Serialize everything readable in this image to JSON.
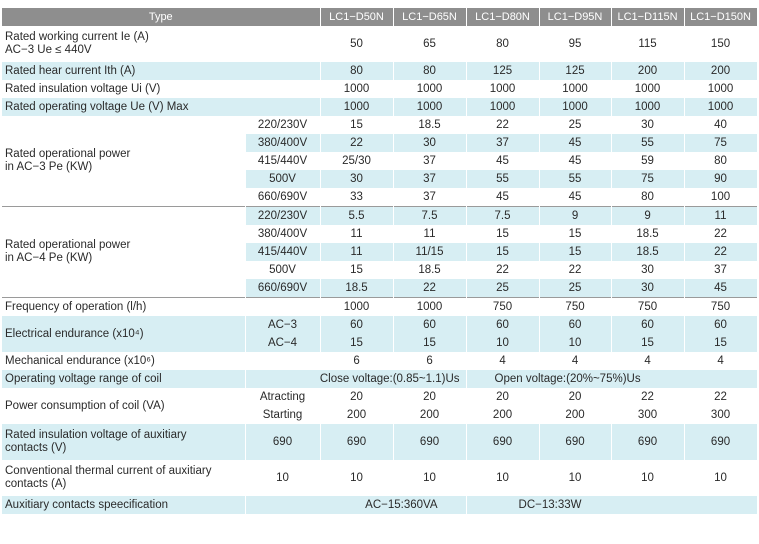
{
  "header": {
    "type_label": "Type",
    "models": [
      "LC1−D50N",
      "LC1−D65N",
      "LC1−D80N",
      "LC1−D95N",
      "LC1−D115N",
      "LC1−D150N"
    ]
  },
  "rows": {
    "rated_working_current": {
      "label_line1": "Rated working current Ie (A)",
      "label_line2": "AC−3 Ue ≤ 440V",
      "values": [
        "50",
        "65",
        "80",
        "95",
        "115",
        "150"
      ]
    },
    "rated_heat_current": {
      "label": "Rated hear current Ith (A)",
      "values": [
        "80",
        "80",
        "125",
        "125",
        "200",
        "200"
      ]
    },
    "rated_insulation_voltage": {
      "label": "Rated insulation voltage Ui (V)",
      "values": [
        "1000",
        "1000",
        "1000",
        "1000",
        "1000",
        "1000"
      ]
    },
    "rated_operating_voltage": {
      "label": "Rated operating voltage Ue (V) Max",
      "values": [
        "1000",
        "1000",
        "1000",
        "1000",
        "1000",
        "1000"
      ]
    },
    "ac3_power": {
      "label_line1": "Rated operational power",
      "label_line2": "in AC−3 Pe (KW)",
      "rows": [
        {
          "voltage": "220/230V",
          "values": [
            "15",
            "18.5",
            "22",
            "25",
            "30",
            "40"
          ]
        },
        {
          "voltage": "380/400V",
          "values": [
            "22",
            "30",
            "37",
            "45",
            "55",
            "75"
          ]
        },
        {
          "voltage": "415/440V",
          "values": [
            "25/30",
            "37",
            "45",
            "45",
            "59",
            "80"
          ]
        },
        {
          "voltage": "500V",
          "values": [
            "30",
            "37",
            "55",
            "55",
            "75",
            "90"
          ]
        },
        {
          "voltage": "660/690V",
          "values": [
            "33",
            "37",
            "45",
            "45",
            "80",
            "100"
          ]
        }
      ]
    },
    "ac4_power": {
      "label_line1": "Rated operational power",
      "label_line2": " in AC−4 Pe (KW)",
      "rows": [
        {
          "voltage": "220/230V",
          "values": [
            "5.5",
            "7.5",
            "7.5",
            "9",
            "9",
            "11"
          ]
        },
        {
          "voltage": "380/400V",
          "values": [
            "11",
            "11",
            "15",
            "15",
            "18.5",
            "22"
          ]
        },
        {
          "voltage": "415/440V",
          "values": [
            "11",
            "11/15",
            "15",
            "15",
            "18.5",
            "22"
          ]
        },
        {
          "voltage": "500V",
          "values": [
            "15",
            "18.5",
            "22",
            "22",
            "30",
            "37"
          ]
        },
        {
          "voltage": "660/690V",
          "values": [
            "18.5",
            "22",
            "25",
            "25",
            "30",
            "45"
          ]
        }
      ]
    },
    "frequency": {
      "label": "Frequency of operation (l/h)",
      "values": [
        "1000",
        "1000",
        "750",
        "750",
        "750",
        "750"
      ]
    },
    "electrical_endurance": {
      "label": "Electrical endurance (x10⁴)",
      "rows": [
        {
          "sub": "AC−3",
          "values": [
            "60",
            "60",
            "60",
            "60",
            "60",
            "60"
          ]
        },
        {
          "sub": "AC−4",
          "values": [
            "15",
            "15",
            "10",
            "10",
            "15",
            "15"
          ]
        }
      ]
    },
    "mechanical_endurance": {
      "label": "Mechanical endurance (x10⁶)",
      "values": [
        "6",
        "6",
        "4",
        "4",
        "4",
        "4"
      ]
    },
    "coil_voltage_range": {
      "label": "Operating voltage range of coil",
      "close": "Close voltage:(0.85~1.1)Us",
      "open": "Open voltage:(20%~75%)Us"
    },
    "coil_power": {
      "label": "Power consumption of coil (VA)",
      "rows": [
        {
          "sub": "Atracting",
          "values": [
            "20",
            "20",
            "20",
            "20",
            "22",
            "22"
          ]
        },
        {
          "sub": "Starting",
          "values": [
            "200",
            "200",
            "200",
            "200",
            "300",
            "300"
          ]
        }
      ]
    },
    "aux_insulation_voltage": {
      "label_line1": "Rated insulation voltage of auxitiary",
      "label_line2": "contacts (V)",
      "sub": "690",
      "values": [
        "690",
        "690",
        "690",
        "690",
        "690",
        "690"
      ]
    },
    "aux_thermal_current": {
      "label_line1": "Conventional thermal current of auxitiary",
      "label_line2": "contacts (A)",
      "sub": "10",
      "values": [
        "10",
        "10",
        "10",
        "10",
        "10",
        "10"
      ]
    },
    "aux_spec": {
      "label": "Auxitiary contacts speecification",
      "ac": "AC−15:360VA",
      "dc": "DC−13:33W"
    }
  }
}
